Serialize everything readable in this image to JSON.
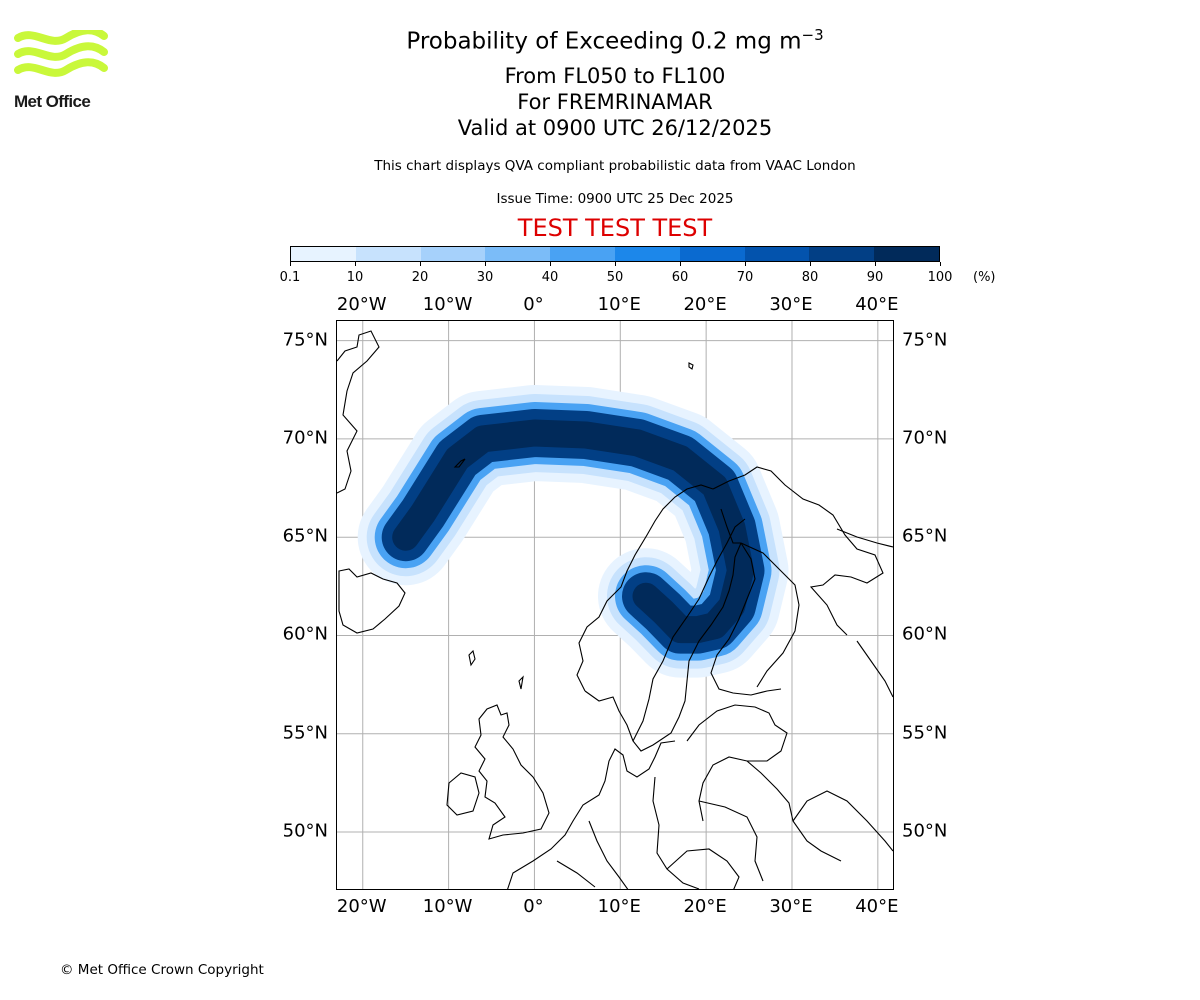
{
  "logo": {
    "text": "Met Office",
    "color": "#c9f83a"
  },
  "title": {
    "main_prefix": "Probability of Exceeding 0.2 mg m",
    "main_exponent": "−3",
    "level": "From FL050 to FL100",
    "for": "For FREMRINAMAR",
    "valid": "Valid at 0900 UTC 26/12/2025",
    "description": "This chart displays QVA compliant probabilistic data from VAAC London",
    "issue": "Issue Time: 0900 UTC 25 Dec 2025",
    "test": "TEST TEST TEST",
    "test_color": "#dd0000"
  },
  "colorbar": {
    "ticks": [
      "0.1",
      "10",
      "20",
      "30",
      "40",
      "50",
      "60",
      "70",
      "80",
      "90",
      "100"
    ],
    "unit": "(%)",
    "colors": [
      "#e7f3ff",
      "#c7e2fd",
      "#a6d1fb",
      "#7bbcf8",
      "#49a2f3",
      "#1c87ea",
      "#0a6ad0",
      "#0353ad",
      "#023f85",
      "#012a5a"
    ]
  },
  "chart_data": {
    "type": "map",
    "projection": "latitude-longitude",
    "extent": {
      "lon": [
        -23,
        42
      ],
      "lat": [
        47,
        76
      ]
    },
    "lon_ticks": [
      -20,
      -10,
      0,
      10,
      20,
      30,
      40
    ],
    "lon_labels": [
      "20°W",
      "10°W",
      "0°",
      "10°E",
      "20°E",
      "30°E",
      "40°E"
    ],
    "lat_ticks": [
      75,
      70,
      65,
      60,
      55,
      50
    ],
    "lat_labels": [
      "75°N",
      "70°N",
      "65°N",
      "60°N",
      "55°N",
      "50°N"
    ],
    "gridlines": true,
    "ash_plume": {
      "source": "Iceland",
      "path_lonlat": [
        [
          -15,
          65
        ],
        [
          -13,
          66.2
        ],
        [
          -11,
          67.6
        ],
        [
          -9,
          69
        ],
        [
          -6,
          70
        ],
        [
          0,
          70.3
        ],
        [
          6,
          70.2
        ],
        [
          12,
          69.8
        ],
        [
          17,
          69
        ],
        [
          21,
          67.6
        ],
        [
          23,
          65.5
        ],
        [
          24,
          63.3
        ],
        [
          23,
          61.5
        ],
        [
          21,
          60.5
        ],
        [
          19,
          60.3
        ],
        [
          17,
          60.3
        ],
        [
          15,
          61.2
        ],
        [
          13,
          62
        ]
      ],
      "band_probability_pct": [
        100,
        80,
        40,
        15,
        5
      ]
    }
  },
  "copyright": "© Met Office Crown Copyright"
}
